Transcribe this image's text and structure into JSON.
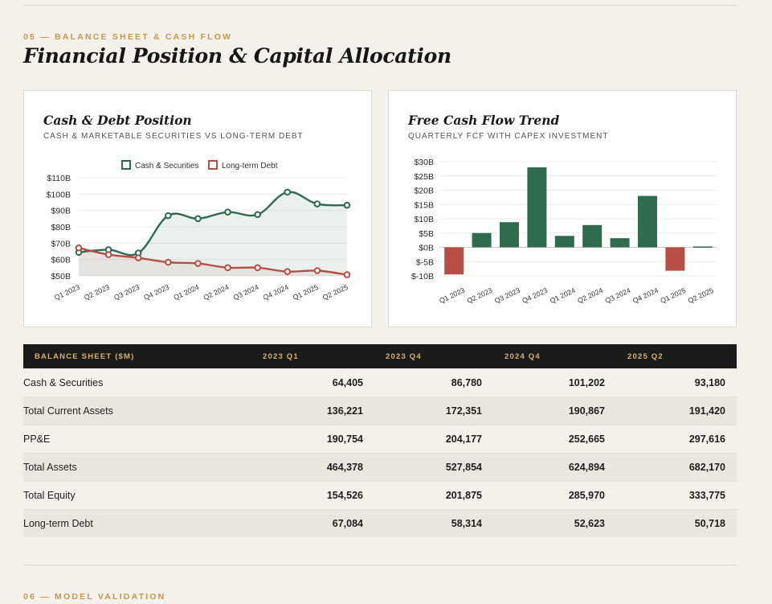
{
  "section5": {
    "eyebrow": "05 — BALANCE SHEET & CASH FLOW",
    "title": "Financial Position & Capital Allocation"
  },
  "chart1": {
    "title": "Cash & Debt Position",
    "subtitle": "CASH & MARKETABLE SECURITIES VS LONG-TERM DEBT"
  },
  "chart2": {
    "title": "Free Cash Flow Trend",
    "subtitle": "QUARTERLY FCF WITH CAPEX INVESTMENT"
  },
  "colors": {
    "green": "#2f6b4f",
    "red": "#b74e45",
    "gold": "#c4974a",
    "header_bg": "#1b1b1b"
  },
  "chart_data": [
    {
      "type": "line",
      "categories": [
        "Q1 2023",
        "Q2 2023",
        "Q3 2023",
        "Q4 2023",
        "Q1 2024",
        "Q2 2024",
        "Q3 2024",
        "Q4 2024",
        "Q1 2025",
        "Q2 2025"
      ],
      "series": [
        {
          "name": "Cash & Securities",
          "color": "#2f6b4f",
          "values": [
            64.4,
            66,
            64,
            86.8,
            85,
            89,
            87.5,
            101.2,
            94,
            93.2
          ]
        },
        {
          "name": "Long-term Debt",
          "color": "#b74e45",
          "values": [
            67.1,
            63,
            61,
            58.3,
            57.6,
            55,
            55,
            52.6,
            53.2,
            50.7
          ]
        }
      ],
      "yticks": [
        "$110B",
        "$100B",
        "$90B",
        "$80B",
        "$70B",
        "$60B",
        "$50B"
      ],
      "ylim": [
        50,
        110
      ],
      "legend": "top"
    },
    {
      "type": "bar",
      "categories": [
        "Q1 2023",
        "Q2 2023",
        "Q3 2023",
        "Q4 2023",
        "Q1 2024",
        "Q2 2024",
        "Q3 2024",
        "Q4 2024",
        "Q1 2025",
        "Q2 2025"
      ],
      "values": [
        -9.5,
        5,
        8.8,
        28,
        4,
        7.8,
        3.2,
        18,
        -8.2,
        0.3
      ],
      "yticks": [
        "$30B",
        "$25B",
        "$20B",
        "$15B",
        "$10B",
        "$5B",
        "$0B",
        "$-5B",
        "$-10B"
      ],
      "ylim": [
        -10,
        30
      ]
    }
  ],
  "table": {
    "headers": [
      "BALANCE SHEET ($M)",
      "2023 Q1",
      "2023 Q4",
      "2024 Q4",
      "2025 Q2"
    ],
    "rows": [
      {
        "label": "Cash & Securities",
        "values": [
          "64,405",
          "86,780",
          "101,202",
          "93,180"
        ]
      },
      {
        "label": "Total Current Assets",
        "values": [
          "136,221",
          "172,351",
          "190,867",
          "191,420"
        ]
      },
      {
        "label": "PP&E",
        "values": [
          "190,754",
          "204,177",
          "252,665",
          "297,616"
        ]
      },
      {
        "label": "Total Assets",
        "values": [
          "464,378",
          "527,854",
          "624,894",
          "682,170"
        ]
      },
      {
        "label": "Total Equity",
        "values": [
          "154,526",
          "201,875",
          "285,970",
          "333,775"
        ]
      },
      {
        "label": "Long-term Debt",
        "values": [
          "67,084",
          "58,314",
          "52,623",
          "50,718"
        ]
      }
    ]
  },
  "section6": {
    "eyebrow": "06 — MODEL VALIDATION"
  }
}
